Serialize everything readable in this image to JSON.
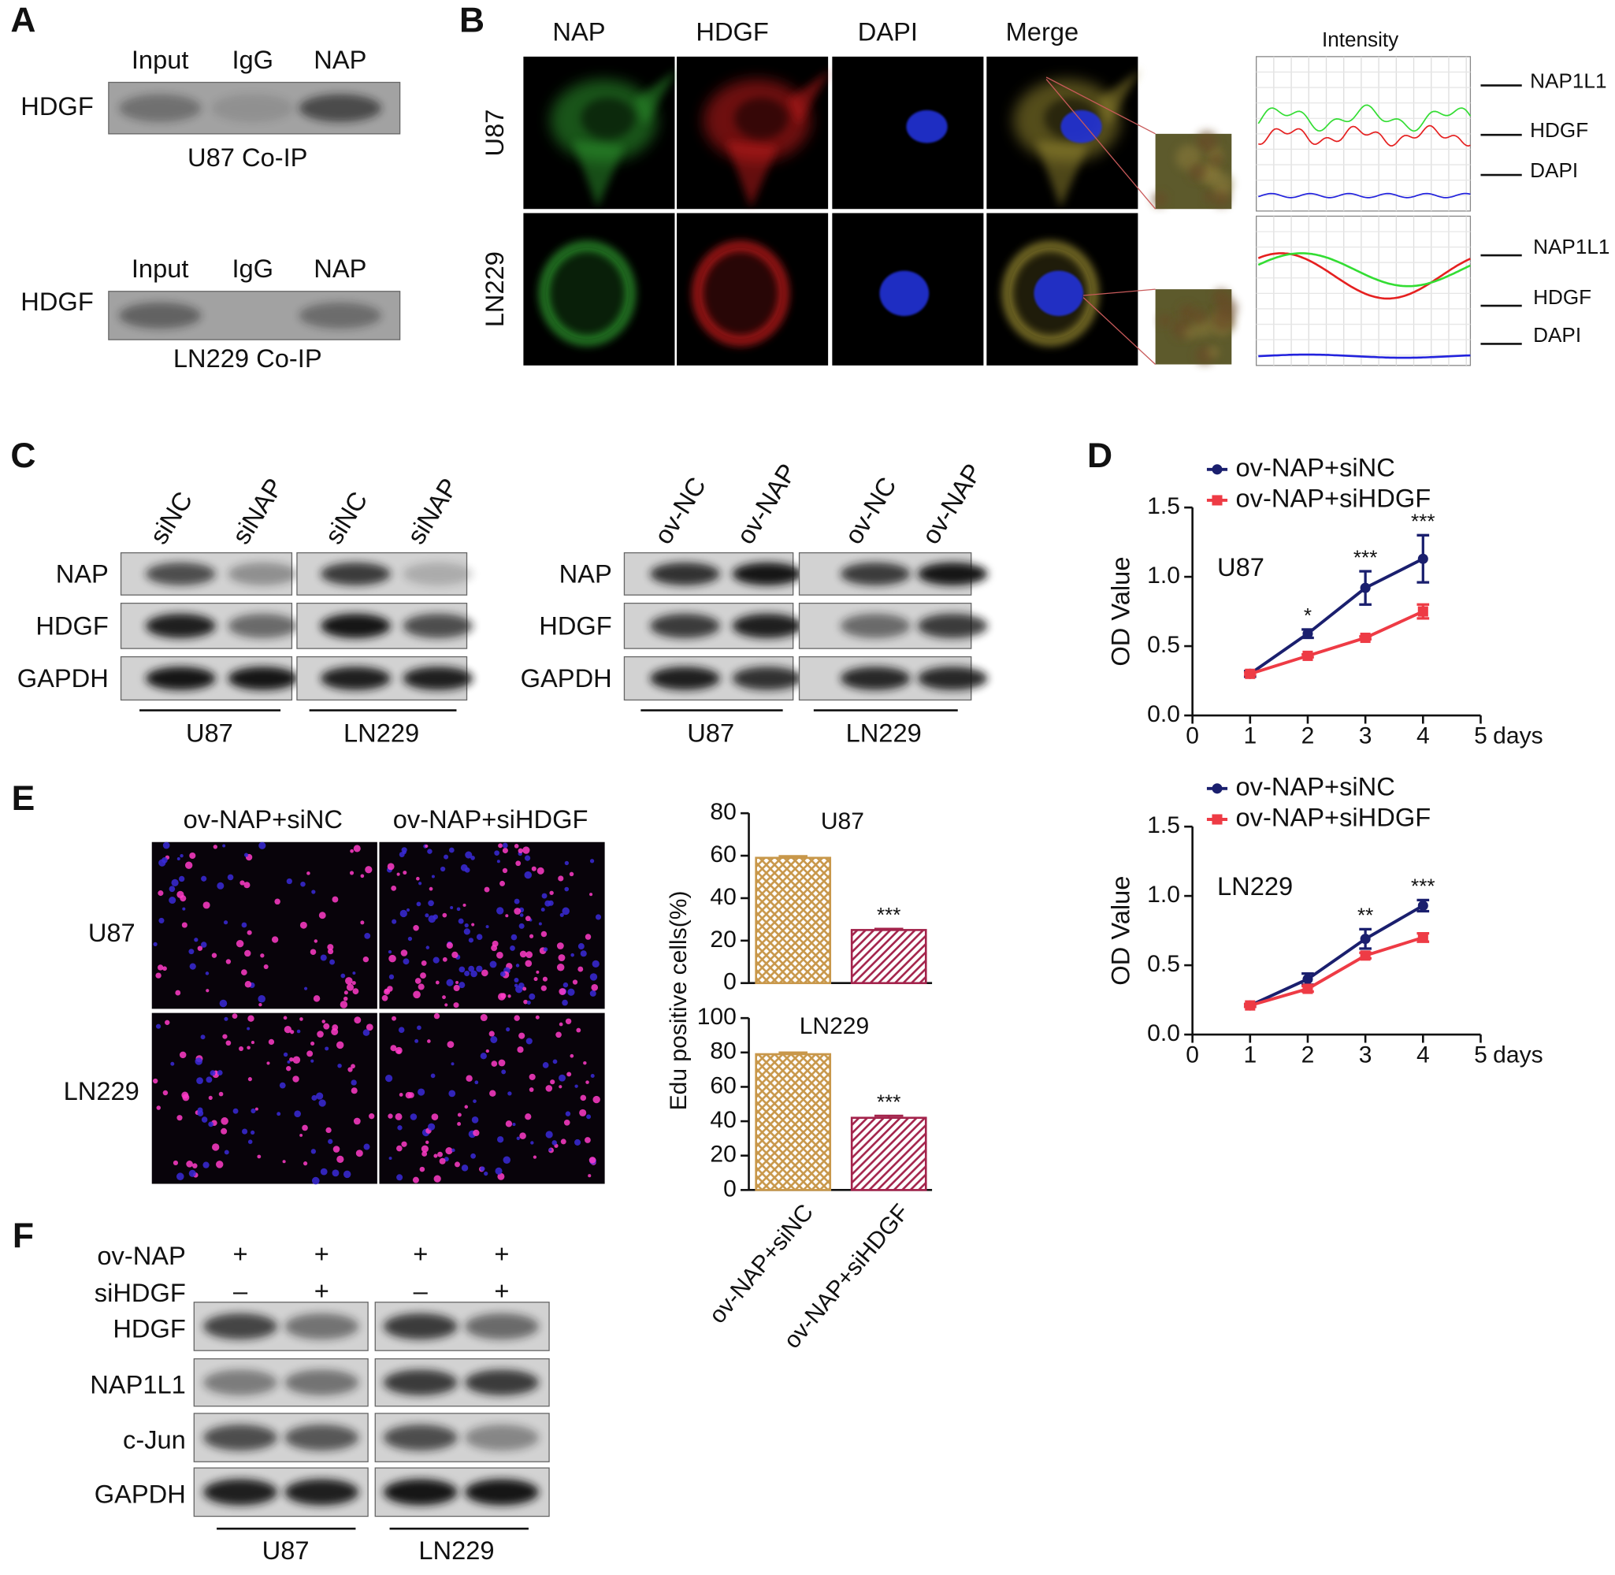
{
  "panels": {
    "a": {
      "label": "A",
      "blots": [
        {
          "lanes": [
            "Input",
            "IgG",
            "NAP"
          ],
          "rows": [
            "HDGF"
          ],
          "caption": "U87 Co-IP"
        },
        {
          "lanes": [
            "Input",
            "IgG",
            "NAP"
          ],
          "rows": [
            "HDGF"
          ],
          "caption": "LN229 Co-IP"
        }
      ]
    },
    "b": {
      "label": "B",
      "channels": [
        "NAP",
        "HDGF",
        "DAPI",
        "Merge"
      ],
      "cell_lines": [
        "U87",
        "LN229"
      ],
      "intensity": {
        "title": "Intensity",
        "profiles": [
          {
            "markers": [
              "NAP1L1",
              "HDGF",
              "DAPI"
            ]
          },
          {
            "markers": [
              "NAP1L1",
              "HDGF",
              "DAPI"
            ]
          }
        ]
      }
    },
    "c": {
      "label": "C",
      "groups": [
        {
          "lanes": [
            "siNC",
            "siNAP",
            "siNC",
            "siNAP"
          ],
          "rows": [
            "NAP",
            "HDGF",
            "GAPDH"
          ],
          "cell_lines": [
            "U87",
            "LN229"
          ]
        },
        {
          "lanes": [
            "ov-NC",
            "ov-NAP",
            "ov-NC",
            "ov-NAP"
          ],
          "rows": [
            "NAP",
            "HDGF",
            "GAPDH"
          ],
          "cell_lines": [
            "U87",
            "LN229"
          ]
        }
      ]
    },
    "d": {
      "label": "D"
    },
    "e": {
      "label": "E",
      "image_columns": [
        "ov-NAP+siNC",
        "ov-NAP+siHDGF"
      ],
      "image_rows": [
        "U87",
        "LN229"
      ]
    },
    "f": {
      "label": "F",
      "conditions": [
        {
          "name": "ov-NAP",
          "marks": [
            "+",
            "+",
            "+",
            "+"
          ]
        },
        {
          "name": "siHDGF",
          "marks": [
            "–",
            "+",
            "–",
            "+"
          ]
        }
      ],
      "rows": [
        "HDGF",
        "NAP1L1",
        "c-Jun",
        "GAPDH"
      ],
      "cell_lines": [
        "U87",
        "LN229"
      ]
    }
  },
  "chart_data": [
    {
      "type": "line",
      "annotation": "U87",
      "xlabel": "days",
      "ylabel": "OD Value",
      "x": [
        1,
        2,
        3,
        4
      ],
      "xlim": [
        0,
        5
      ],
      "xticks": [
        0,
        1,
        2,
        3,
        4,
        5
      ],
      "ylim": [
        0,
        1.5
      ],
      "yticks": [
        {
          "value": 0,
          "label": "0.0"
        },
        {
          "value": 0.5,
          "label": "0.5"
        },
        {
          "value": 1,
          "label": "1.0"
        },
        {
          "value": 1.5,
          "label": "1.5"
        }
      ],
      "legend": "top-left",
      "series": [
        {
          "name": "ov-NAP+siNC",
          "color": "#1a1f6e",
          "marker": "circle",
          "values": [
            0.3,
            0.59,
            0.92,
            1.13
          ],
          "errors": [
            0.02,
            0.03,
            0.12,
            0.17
          ]
        },
        {
          "name": "ov-NAP+siHDGF",
          "color": "#ee3b45",
          "marker": "square",
          "values": [
            0.3,
            0.43,
            0.56,
            0.75
          ],
          "errors": [
            0.01,
            0.01,
            0.01,
            0.05
          ]
        }
      ],
      "significance": [
        null,
        "*",
        "***",
        "***"
      ]
    },
    {
      "type": "line",
      "annotation": "LN229",
      "xlabel": "days",
      "ylabel": "OD Value",
      "x": [
        1,
        2,
        3,
        4
      ],
      "xlim": [
        0,
        5
      ],
      "xticks": [
        0,
        1,
        2,
        3,
        4,
        5
      ],
      "ylim": [
        0,
        1.5
      ],
      "yticks": [
        {
          "value": 0,
          "label": "0.0"
        },
        {
          "value": 0.5,
          "label": "0.5"
        },
        {
          "value": 1,
          "label": "1.0"
        },
        {
          "value": 1.5,
          "label": "1.5"
        }
      ],
      "legend": "top-left",
      "series": [
        {
          "name": "ov-NAP+siNC",
          "color": "#1a1f6e",
          "marker": "circle",
          "values": [
            0.21,
            0.4,
            0.69,
            0.93
          ],
          "errors": [
            0.01,
            0.04,
            0.07,
            0.04
          ]
        },
        {
          "name": "ov-NAP+siHDGF",
          "color": "#ee3b45",
          "marker": "square",
          "values": [
            0.21,
            0.33,
            0.57,
            0.7
          ],
          "errors": [
            0.01,
            0.02,
            0.02,
            0.03
          ]
        }
      ],
      "significance": [
        null,
        null,
        "**",
        "***"
      ]
    },
    {
      "type": "bar",
      "title": "U87",
      "ylabel": "Edu positive cells(%)",
      "categories": [
        null,
        null
      ],
      "values": [
        59,
        25
      ],
      "errors": [
        0.8,
        0.6
      ],
      "colors": [
        "#c8974a",
        "#a3234b"
      ],
      "patterns": [
        "crosshatch",
        "diagonal"
      ],
      "ylim": [
        0,
        80
      ],
      "yticks": [
        0,
        20,
        40,
        60,
        80
      ],
      "significance": [
        null,
        "***"
      ]
    },
    {
      "type": "bar",
      "title": "LN229",
      "categories": [
        "ov-NAP+siNC",
        "ov-NAP+siHDGF"
      ],
      "values": [
        79,
        42
      ],
      "errors": [
        1,
        1.2
      ],
      "colors": [
        "#c8974a",
        "#a3234b"
      ],
      "patterns": [
        "crosshatch",
        "diagonal"
      ],
      "ylim": [
        0,
        100
      ],
      "yticks": [
        0,
        20,
        40,
        60,
        80,
        100
      ],
      "significance": [
        null,
        "***"
      ]
    }
  ]
}
